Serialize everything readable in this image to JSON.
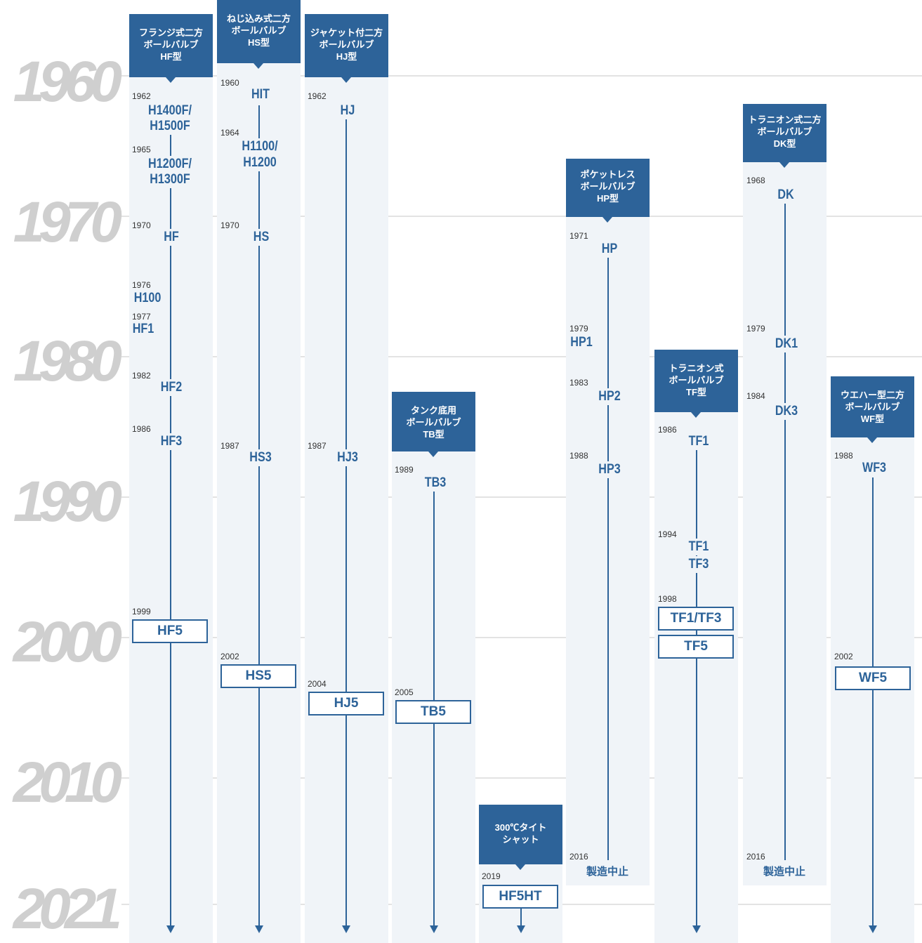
{
  "years": [
    "1960",
    "1970",
    "1980",
    "1990",
    "2000",
    "2010",
    "2021"
  ],
  "columns": {
    "hf": {
      "header": [
        "フランジ式二方",
        "ボールバルブ",
        "HF型"
      ],
      "entries": [
        {
          "year": "1962",
          "model": "H1400F/"
        },
        {
          "model": "H1500F"
        },
        {
          "year": "1965",
          "model": "H1200F/"
        },
        {
          "model": "H1300F"
        },
        {
          "year": "1970",
          "model": "HF"
        },
        {
          "year": "1976",
          "model": "H100"
        },
        {
          "year": "1977",
          "model": "HF1"
        },
        {
          "year": "1982",
          "model": "HF2"
        },
        {
          "year": "1986",
          "model": "HF3"
        },
        {
          "year": "1999",
          "model": "HF5"
        }
      ]
    },
    "hs": {
      "header": [
        "ねじ込み式二方",
        "ボールバルブ",
        "HS型"
      ],
      "entries": [
        {
          "year": "1960",
          "model": "HIT"
        },
        {
          "year": "1964",
          "model": "H1100/"
        },
        {
          "model": "H1200"
        },
        {
          "year": "1970",
          "model": "HS"
        },
        {
          "year": "1987",
          "model": "HS3"
        },
        {
          "year": "2002",
          "model": "HS5"
        }
      ]
    },
    "hj": {
      "header": [
        "ジャケット付二方",
        "ボールバルブ",
        "HJ型"
      ],
      "entries": [
        {
          "year": "1962",
          "model": "HJ"
        },
        {
          "year": "1987",
          "model": "HJ3"
        },
        {
          "year": "2004",
          "model": "HJ5"
        }
      ]
    },
    "tb": {
      "header": [
        "タンク底用",
        "ボールバルブ",
        "TB型"
      ],
      "entries": [
        {
          "year": "1989",
          "model": "TB3"
        },
        {
          "year": "2005",
          "model": "TB5"
        }
      ]
    },
    "hf5ht": {
      "header": [
        "300℃タイト",
        "シャット"
      ],
      "entries": [
        {
          "year": "2019",
          "model": "HF5HT"
        }
      ]
    },
    "hp": {
      "header": [
        "ポケットレス",
        "ボールバルブ",
        "HP型"
      ],
      "entries": [
        {
          "year": "1971",
          "model": "HP"
        },
        {
          "year": "1979",
          "model": "HP1"
        },
        {
          "year": "1983",
          "model": "HP2"
        },
        {
          "year": "1988",
          "model": "HP3"
        },
        {
          "year": "2016",
          "model": "製造中止"
        }
      ]
    },
    "tf": {
      "header": [
        "トラニオン式",
        "ボールバルブ",
        "TF型"
      ],
      "entries": [
        {
          "year": "1986",
          "model": "TF1"
        },
        {
          "year": "1994",
          "model": "TF1"
        },
        {
          "model": "TF3"
        },
        {
          "year": "1998",
          "model": "TF1/TF3"
        },
        {
          "model": "TF5"
        }
      ]
    },
    "dk": {
      "header": [
        "トラニオン式二方",
        "ボールバルブ",
        "DK型"
      ],
      "entries": [
        {
          "year": "1968",
          "model": "DK"
        },
        {
          "year": "1979",
          "model": "DK1"
        },
        {
          "year": "1984",
          "model": "DK3"
        },
        {
          "year": "2016",
          "model": "製造中止"
        }
      ]
    },
    "wf": {
      "header": [
        "ウエハー型二方",
        "ボールバルブ",
        "WF型"
      ],
      "entries": [
        {
          "year": "1988",
          "model": "WF3"
        },
        {
          "year": "2002",
          "model": "WF5"
        }
      ]
    }
  },
  "colors": {
    "accent": "#2d6399",
    "column_bg": "#f0f4f8",
    "year_label": "#cfcfcf",
    "gridline": "#e3e3e3"
  }
}
